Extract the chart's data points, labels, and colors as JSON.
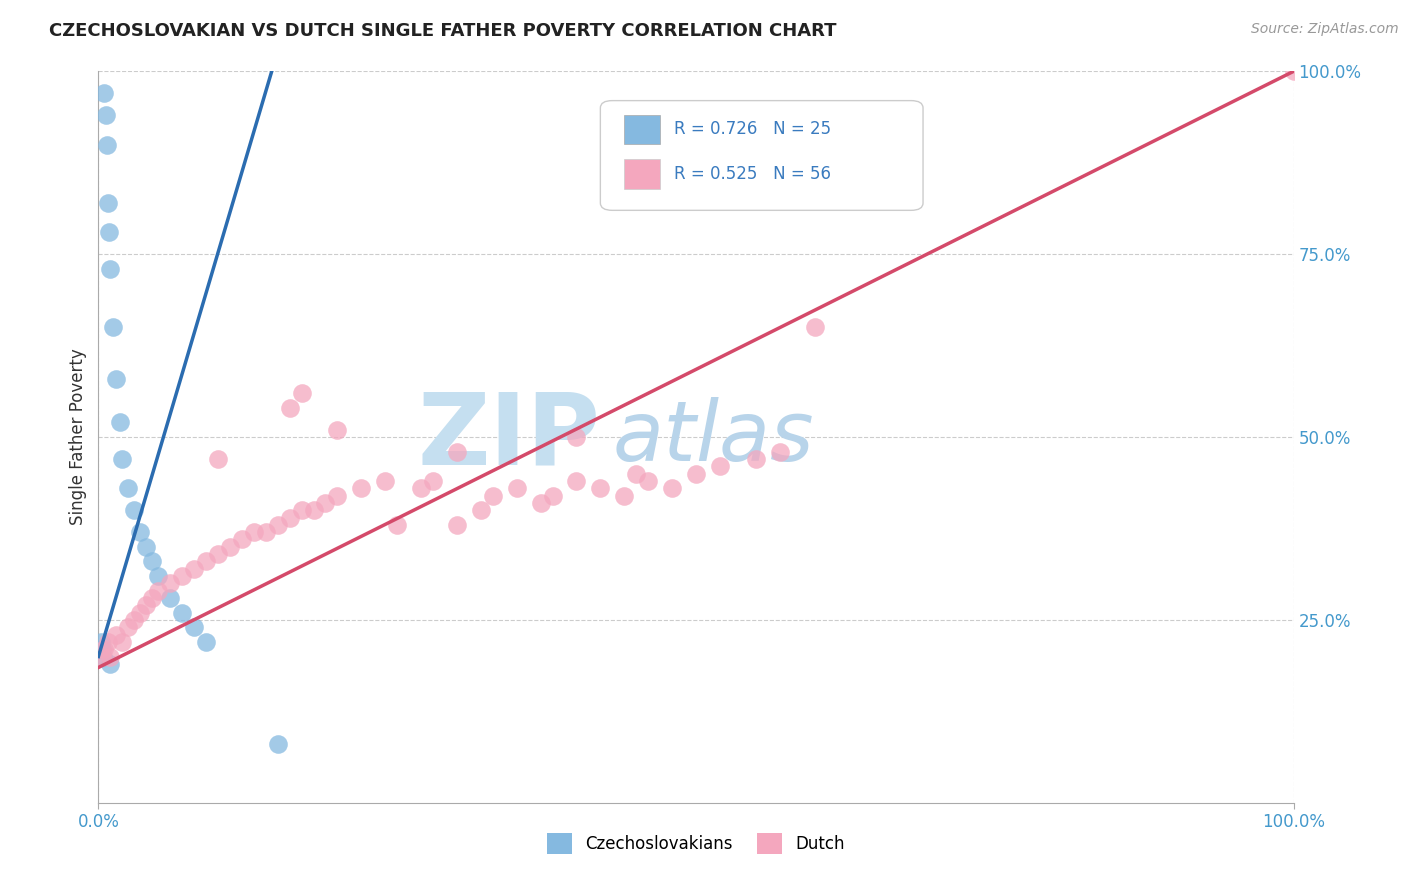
{
  "title": "CZECHOSLOVAKIAN VS DUTCH SINGLE FATHER POVERTY CORRELATION CHART",
  "source": "Source: ZipAtlas.com",
  "ylabel": "Single Father Poverty",
  "legend_label1": "Czechoslovakians",
  "legend_label2": "Dutch",
  "R1": 0.726,
  "N1": 25,
  "R2": 0.525,
  "N2": 56,
  "color1": "#85b9e0",
  "color2": "#f4a7be",
  "line_color1": "#2b6cb0",
  "line_color2": "#d44a6a",
  "watermark_zip_color": "#c5dff0",
  "watermark_atlas_color": "#b8d4ea",
  "czech_x": [
    0.5,
    0.6,
    0.7,
    0.8,
    0.9,
    1.0,
    1.2,
    1.5,
    1.8,
    2.0,
    2.5,
    3.0,
    3.5,
    4.0,
    4.5,
    5.0,
    6.0,
    7.0,
    8.0,
    9.0,
    0.2,
    0.3,
    0.4,
    1.0,
    15.0
  ],
  "czech_y": [
    97.0,
    94.0,
    90.0,
    82.0,
    78.0,
    73.0,
    65.0,
    58.0,
    52.0,
    47.0,
    43.0,
    40.0,
    37.0,
    35.0,
    33.0,
    31.0,
    28.0,
    26.0,
    24.0,
    22.0,
    22.0,
    21.0,
    20.0,
    19.0,
    8.0
  ],
  "dutch_x": [
    0.3,
    0.5,
    0.8,
    1.0,
    1.5,
    2.0,
    2.5,
    3.0,
    3.5,
    4.0,
    4.5,
    5.0,
    6.0,
    7.0,
    8.0,
    9.0,
    10.0,
    11.0,
    12.0,
    13.0,
    14.0,
    15.0,
    16.0,
    17.0,
    18.0,
    19.0,
    20.0,
    22.0,
    24.0,
    25.0,
    27.0,
    28.0,
    30.0,
    32.0,
    33.0,
    35.0,
    37.0,
    38.0,
    40.0,
    42.0,
    44.0,
    46.0,
    48.0,
    50.0,
    52.0,
    55.0,
    57.0,
    45.0,
    10.0,
    20.0,
    30.0,
    40.0,
    16.0,
    17.0,
    100.0,
    60.0
  ],
  "dutch_y": [
    20.0,
    21.0,
    22.0,
    20.0,
    23.0,
    22.0,
    24.0,
    25.0,
    26.0,
    27.0,
    28.0,
    29.0,
    30.0,
    31.0,
    32.0,
    33.0,
    34.0,
    35.0,
    36.0,
    37.0,
    37.0,
    38.0,
    39.0,
    40.0,
    40.0,
    41.0,
    42.0,
    43.0,
    44.0,
    38.0,
    43.0,
    44.0,
    38.0,
    40.0,
    42.0,
    43.0,
    41.0,
    42.0,
    44.0,
    43.0,
    42.0,
    44.0,
    43.0,
    45.0,
    46.0,
    47.0,
    48.0,
    45.0,
    47.0,
    51.0,
    48.0,
    50.0,
    54.0,
    56.0,
    100.0,
    65.0
  ],
  "czech_line_x0": 0.0,
  "czech_line_y0": 20.0,
  "czech_line_x1": 14.5,
  "czech_line_y1": 100.0,
  "dutch_line_x0": 0.0,
  "dutch_line_y0": 18.5,
  "dutch_line_x1": 100.0,
  "dutch_line_y1": 100.0,
  "xmin": 0,
  "xmax": 100,
  "ymin": 0,
  "ymax": 100,
  "background_color": "#ffffff",
  "grid_color": "#cccccc",
  "title_color": "#222222",
  "tick_label_color": "#4499cc",
  "legend_color": "#3a7bbf"
}
